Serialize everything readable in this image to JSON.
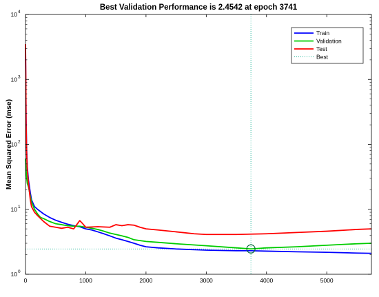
{
  "chart_data": {
    "type": "line",
    "title": "Best Validation Performance is 2.4542 at epoch 3741",
    "xlabel": "",
    "ylabel": "Mean Squared Error  (mse)",
    "xlim": [
      0,
      5741
    ],
    "ylim": [
      1,
      10000
    ],
    "y_scale": "log",
    "grid": false,
    "legend_position": "top-right",
    "x_ticks": [
      0,
      1000,
      2000,
      3000,
      4000,
      5000
    ],
    "x_tick_labels": [
      "0",
      "1000",
      "2000",
      "3000",
      "4000",
      "5000"
    ],
    "y_ticks": [
      1,
      10,
      100,
      1000,
      10000
    ],
    "y_tick_labels": [
      "10",
      "10",
      "10",
      "10",
      "10"
    ],
    "y_tick_exponents": [
      "0",
      "1",
      "2",
      "3",
      "4"
    ],
    "series": [
      {
        "name": "Train",
        "color": "#0000ff",
        "style": "solid",
        "points": [
          [
            0,
            3000
          ],
          [
            5,
            900
          ],
          [
            10,
            250
          ],
          [
            20,
            80
          ],
          [
            30,
            45
          ],
          [
            50,
            28
          ],
          [
            80,
            18
          ],
          [
            100,
            14
          ],
          [
            150,
            11
          ],
          [
            200,
            10
          ],
          [
            300,
            8.5
          ],
          [
            400,
            7.5
          ],
          [
            500,
            6.8
          ],
          [
            600,
            6.3
          ],
          [
            700,
            5.9
          ],
          [
            800,
            5.6
          ],
          [
            900,
            5.4
          ],
          [
            1000,
            5.0
          ],
          [
            1100,
            4.8
          ],
          [
            1200,
            4.5
          ],
          [
            1300,
            4.2
          ],
          [
            1400,
            3.9
          ],
          [
            1500,
            3.6
          ],
          [
            1600,
            3.4
          ],
          [
            1700,
            3.2
          ],
          [
            1800,
            3.0
          ],
          [
            1900,
            2.8
          ],
          [
            2000,
            2.65
          ],
          [
            2200,
            2.55
          ],
          [
            2500,
            2.45
          ],
          [
            3000,
            2.35
          ],
          [
            3500,
            2.3
          ],
          [
            3741,
            2.3
          ],
          [
            4000,
            2.27
          ],
          [
            4500,
            2.22
          ],
          [
            5000,
            2.18
          ],
          [
            5500,
            2.12
          ],
          [
            5741,
            2.1
          ]
        ]
      },
      {
        "name": "Validation",
        "color": "#00cc00",
        "style": "solid",
        "points": [
          [
            0,
            60
          ],
          [
            5,
            50
          ],
          [
            10,
            40
          ],
          [
            20,
            30
          ],
          [
            30,
            25
          ],
          [
            50,
            22
          ],
          [
            80,
            16
          ],
          [
            100,
            13
          ],
          [
            150,
            10
          ],
          [
            200,
            8.5
          ],
          [
            250,
            7.5
          ],
          [
            300,
            7.2
          ],
          [
            400,
            6.5
          ],
          [
            500,
            6.0
          ],
          [
            600,
            5.8
          ],
          [
            700,
            5.6
          ],
          [
            800,
            5.5
          ],
          [
            900,
            5.5
          ],
          [
            1000,
            5.3
          ],
          [
            1100,
            5.1
          ],
          [
            1200,
            4.9
          ],
          [
            1300,
            4.6
          ],
          [
            1400,
            4.3
          ],
          [
            1500,
            4.1
          ],
          [
            1600,
            3.9
          ],
          [
            1700,
            3.7
          ],
          [
            1800,
            3.4
          ],
          [
            1900,
            3.3
          ],
          [
            2000,
            3.2
          ],
          [
            2200,
            3.1
          ],
          [
            2500,
            2.95
          ],
          [
            3000,
            2.75
          ],
          [
            3500,
            2.55
          ],
          [
            3741,
            2.4542
          ],
          [
            4000,
            2.55
          ],
          [
            4500,
            2.65
          ],
          [
            5000,
            2.8
          ],
          [
            5500,
            2.95
          ],
          [
            5741,
            3.0
          ]
        ]
      },
      {
        "name": "Test",
        "color": "#ff0000",
        "style": "solid",
        "points": [
          [
            0,
            3500
          ],
          [
            5,
            1200
          ],
          [
            10,
            200
          ],
          [
            20,
            70
          ],
          [
            30,
            40
          ],
          [
            50,
            25
          ],
          [
            80,
            14
          ],
          [
            100,
            11
          ],
          [
            150,
            9
          ],
          [
            200,
            8
          ],
          [
            300,
            6.5
          ],
          [
            400,
            5.5
          ],
          [
            500,
            5.3
          ],
          [
            600,
            5.1
          ],
          [
            700,
            5.3
          ],
          [
            800,
            5.0
          ],
          [
            850,
            5.8
          ],
          [
            900,
            6.7
          ],
          [
            950,
            6.0
          ],
          [
            1000,
            5.3
          ],
          [
            1200,
            5.4
          ],
          [
            1400,
            5.3
          ],
          [
            1500,
            5.8
          ],
          [
            1600,
            5.6
          ],
          [
            1700,
            5.8
          ],
          [
            1800,
            5.7
          ],
          [
            1900,
            5.3
          ],
          [
            2000,
            5.0
          ],
          [
            2200,
            4.8
          ],
          [
            2500,
            4.5
          ],
          [
            2800,
            4.2
          ],
          [
            3000,
            4.1
          ],
          [
            3500,
            4.1
          ],
          [
            3741,
            4.15
          ],
          [
            4000,
            4.2
          ],
          [
            4500,
            4.4
          ],
          [
            5000,
            4.6
          ],
          [
            5500,
            4.9
          ],
          [
            5741,
            5.0
          ]
        ]
      },
      {
        "name": "Best",
        "color": "#00aa88",
        "style": "dotted",
        "best_epoch": 3741,
        "best_value": 2.4542
      }
    ]
  }
}
